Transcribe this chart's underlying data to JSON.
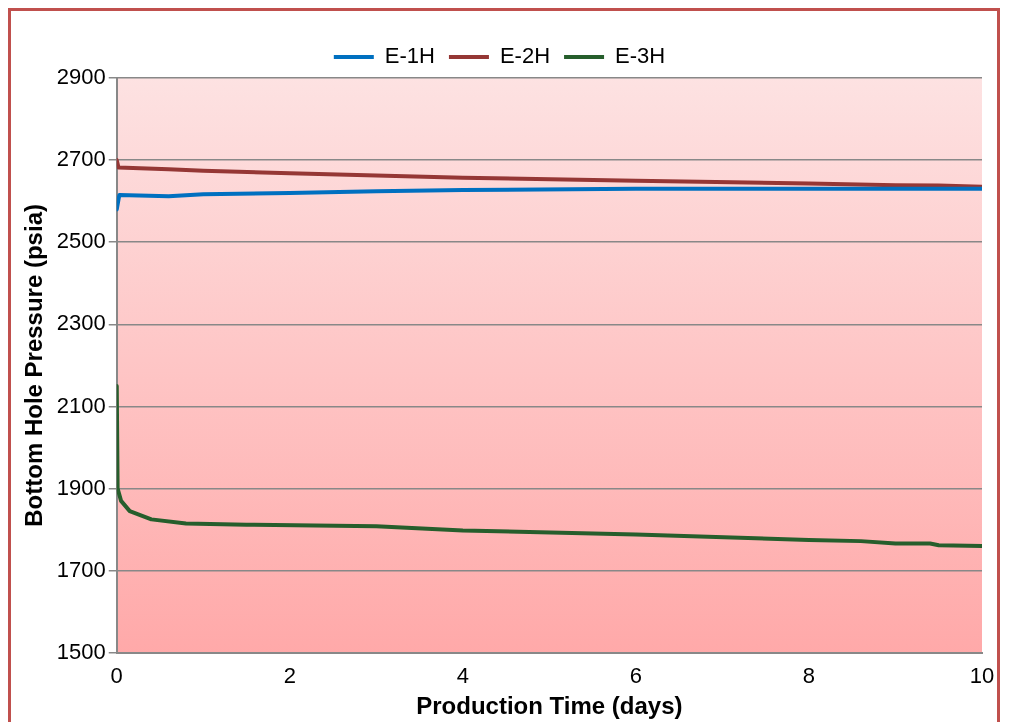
{
  "chart_data": {
    "type": "line",
    "xlabel": "Production Time (days)",
    "ylabel": "Bottom Hole Pressure (psia)",
    "xlim": [
      0,
      10
    ],
    "xticks": [
      0,
      2,
      4,
      6,
      8,
      10
    ],
    "ylim": [
      1500,
      2900
    ],
    "yticks": [
      1500,
      1700,
      1900,
      2100,
      2300,
      2500,
      2700,
      2900
    ],
    "grid": "y",
    "legend": "top",
    "marker": "none",
    "line_style": "solid",
    "series": [
      {
        "name": "E-1H",
        "color": "#0070c0",
        "x": [
          0,
          0.03,
          0.6,
          1,
          2,
          3,
          4,
          6,
          8,
          10
        ],
        "values": [
          2580,
          2615,
          2612,
          2617,
          2620,
          2624,
          2627,
          2630,
          2630,
          2630
        ]
      },
      {
        "name": "E-2H",
        "color": "#953735",
        "x": [
          0,
          0.02,
          0.6,
          1,
          2,
          4,
          6,
          8,
          9,
          9.5,
          10
        ],
        "values": [
          2700,
          2682,
          2678,
          2674,
          2668,
          2657,
          2650,
          2643,
          2639,
          2638,
          2635
        ]
      },
      {
        "name": "E-3H",
        "color": "#265e2c",
        "x": [
          0,
          0.01,
          0.05,
          0.15,
          0.4,
          0.8,
          1.5,
          3,
          4,
          6,
          8,
          8.6,
          9,
          9.4,
          9.5,
          10
        ],
        "values": [
          2150,
          1900,
          1870,
          1845,
          1825,
          1815,
          1812,
          1808,
          1798,
          1788,
          1775,
          1772,
          1766,
          1766,
          1762,
          1760
        ]
      }
    ]
  }
}
